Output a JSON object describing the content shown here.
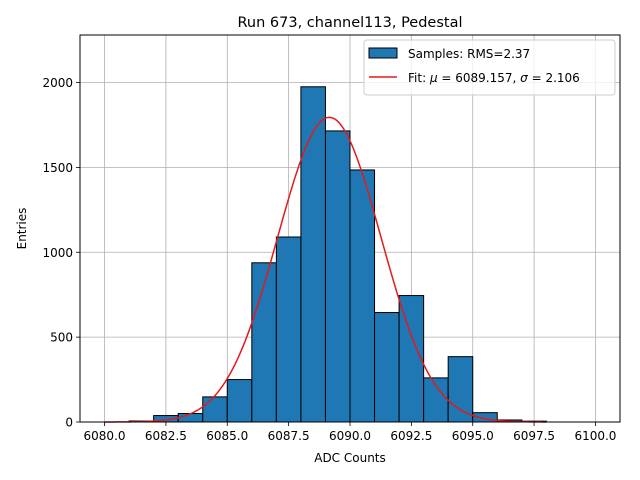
{
  "chart_data": {
    "type": "bar",
    "title": "Run 673, channel113, Pedestal",
    "xlabel": "ADC Counts",
    "ylabel": "Entries",
    "xlim": [
      6079.0,
      6101.0
    ],
    "ylim": [
      0,
      2280
    ],
    "xticks": [
      6080.0,
      6082.5,
      6085.0,
      6087.5,
      6090.0,
      6092.5,
      6095.0,
      6097.5,
      6100.0
    ],
    "xtick_labels": [
      "6080.0",
      "6082.5",
      "6085.0",
      "6087.5",
      "6090.0",
      "6092.5",
      "6095.0",
      "6097.5",
      "6100.0"
    ],
    "yticks": [
      0,
      500,
      1000,
      1500,
      2000
    ],
    "ytick_labels": [
      "0",
      "500",
      "1000",
      "1500",
      "2000"
    ],
    "grid": true,
    "histogram": {
      "name": "Samples: RMS=2.37",
      "color": "#1f77b4",
      "edgecolor": "#000000",
      "bin_width": 1,
      "bin_lefts": [
        6081,
        6082,
        6083,
        6084,
        6085,
        6086,
        6087,
        6088,
        6089,
        6090,
        6091,
        6092,
        6093,
        6094,
        6095,
        6096,
        6097
      ],
      "counts": [
        6,
        38,
        50,
        148,
        250,
        938,
        1090,
        1975,
        1715,
        1485,
        645,
        745,
        260,
        385,
        55,
        12,
        5
      ]
    },
    "fit": {
      "name": "Fit: μ = 6089.157, σ = 2.106",
      "legend_prefix": "Fit: ",
      "mu_symbol": "μ",
      "mu_text": " = 6089.157, ",
      "sigma_symbol": "σ",
      "sigma_text": " = 2.106",
      "color": "#e31a1c",
      "mu": 6089.157,
      "sigma": 2.106,
      "amplitude": 1795,
      "x_range": [
        6080,
        6098
      ]
    },
    "legend": {
      "position": "upper right"
    }
  }
}
